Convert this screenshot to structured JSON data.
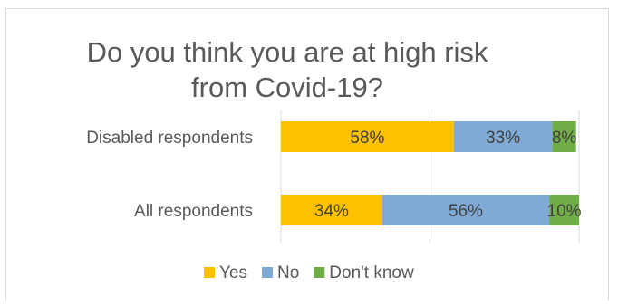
{
  "chart_data": {
    "type": "bar",
    "orientation": "horizontal",
    "stacked": true,
    "title": "Do you think you are at high risk from Covid-19?",
    "title_lines": [
      "Do you think you are at high risk",
      "from Covid-19?"
    ],
    "categories": [
      "Disabled respondents",
      "All respondents"
    ],
    "series": [
      {
        "name": "Yes",
        "values": [
          58,
          34
        ],
        "labels": [
          "58%",
          "34%"
        ],
        "color": "#FFC000"
      },
      {
        "name": "No",
        "values": [
          33,
          56
        ],
        "labels": [
          "33%",
          "56%"
        ],
        "color": "#7FAAD6"
      },
      {
        "name": "Don't know",
        "values": [
          8,
          10
        ],
        "labels": [
          "8%",
          "10%"
        ],
        "color": "#70AD47"
      }
    ],
    "xlim": [
      0,
      100
    ],
    "grid": true,
    "legend_position": "bottom"
  }
}
